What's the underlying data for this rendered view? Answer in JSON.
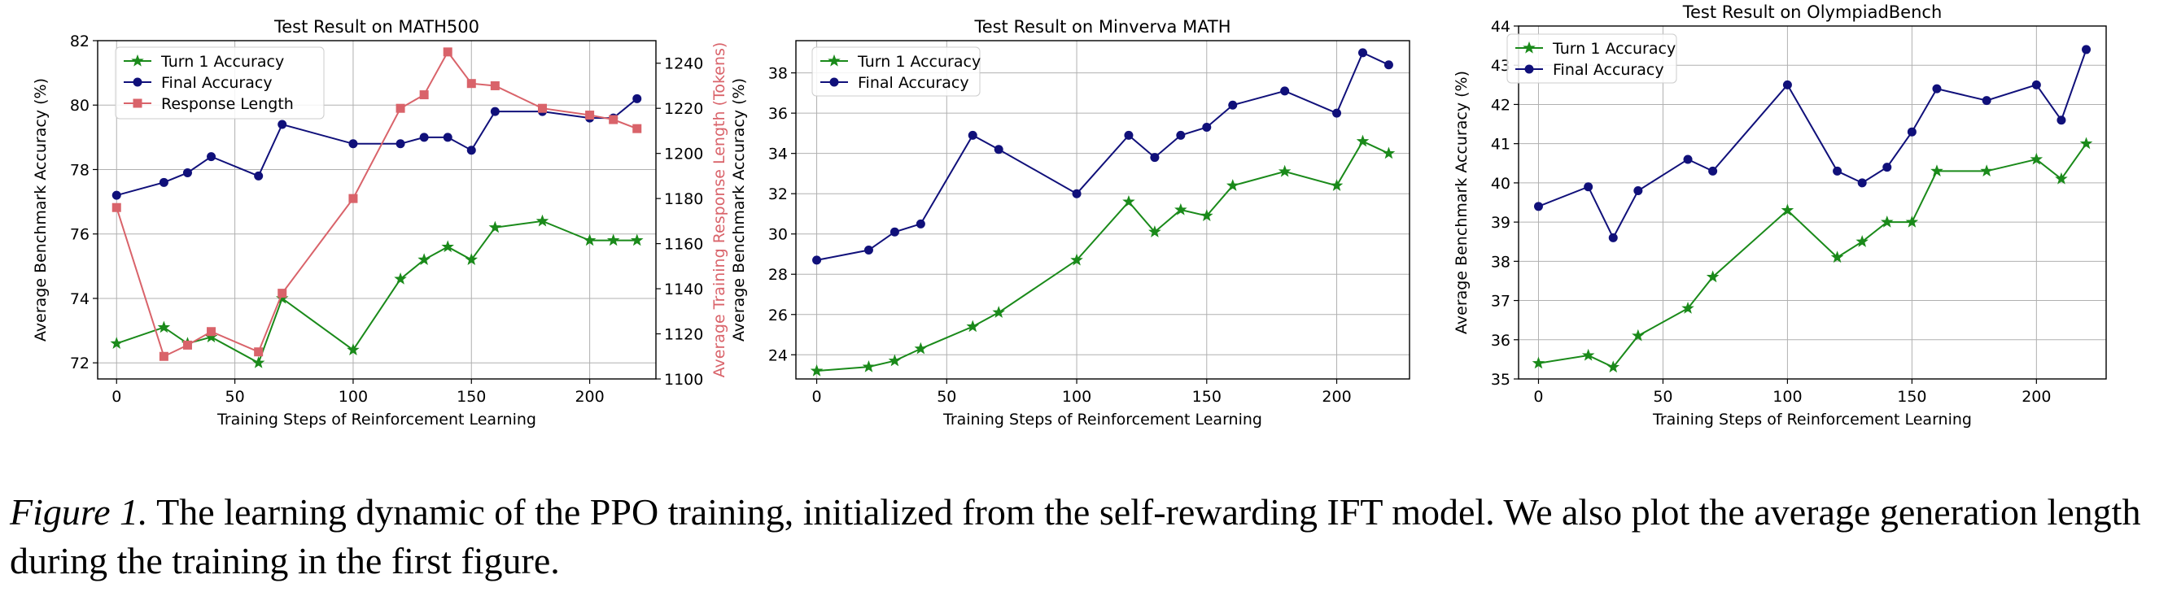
{
  "chart_data": [
    {
      "type": "line",
      "title": "Test Result on MATH500",
      "xlabel": "Training Steps of Reinforcement Learning",
      "ylabel": "Average Benchmark Accuracy (%)",
      "y2label": "Average Training Response Length (Tokens)",
      "xlim": [
        -8,
        228
      ],
      "ylim": [
        71.5,
        82
      ],
      "y2lim": [
        1100,
        1250
      ],
      "xticks": [
        0,
        50,
        100,
        150,
        200
      ],
      "yticks": [
        72,
        74,
        76,
        78,
        80,
        82
      ],
      "y2ticks": [
        1100,
        1120,
        1140,
        1160,
        1180,
        1200,
        1220,
        1240
      ],
      "grid": true,
      "legend": "top-left",
      "series": [
        {
          "name": "Turn 1 Accuracy",
          "color": "#1a8a1a",
          "marker": "star",
          "axis": "left",
          "x": [
            0,
            20,
            30,
            40,
            60,
            70,
            100,
            120,
            130,
            140,
            150,
            160,
            180,
            200,
            210,
            220
          ],
          "y": [
            72.6,
            73.1,
            72.6,
            72.8,
            72.0,
            74.0,
            72.4,
            74.6,
            75.2,
            75.6,
            75.2,
            76.2,
            76.4,
            75.8,
            75.8,
            75.8
          ]
        },
        {
          "name": "Final Accuracy",
          "color": "#10107a",
          "marker": "circle",
          "axis": "left",
          "x": [
            0,
            20,
            30,
            40,
            60,
            70,
            100,
            120,
            130,
            140,
            150,
            160,
            180,
            200,
            210,
            220
          ],
          "y": [
            77.2,
            77.6,
            77.9,
            78.4,
            77.8,
            79.4,
            78.8,
            78.8,
            79.0,
            79.0,
            78.6,
            79.8,
            79.8,
            79.6,
            79.6,
            80.2
          ]
        },
        {
          "name": "Response Length",
          "color": "#d9636a",
          "marker": "square",
          "axis": "right",
          "x": [
            0,
            20,
            30,
            40,
            60,
            70,
            100,
            120,
            130,
            140,
            150,
            160,
            180,
            200,
            210,
            220
          ],
          "y": [
            1176,
            1110,
            1115,
            1121,
            1112,
            1138,
            1180,
            1220,
            1226,
            1245,
            1231,
            1230,
            1220,
            1217,
            1215,
            1211
          ]
        }
      ]
    },
    {
      "type": "line",
      "title": "Test Result on Minverva MATH",
      "xlabel": "Training Steps of Reinforcement Learning",
      "ylabel": "Average Benchmark Accuracy (%)",
      "xlim": [
        -8,
        228
      ],
      "ylim": [
        22.8,
        39.6
      ],
      "xticks": [
        0,
        50,
        100,
        150,
        200
      ],
      "yticks": [
        24,
        26,
        28,
        30,
        32,
        34,
        36,
        38
      ],
      "grid": true,
      "legend": "top-left",
      "series": [
        {
          "name": "Turn 1 Accuracy",
          "color": "#1a8a1a",
          "marker": "star",
          "x": [
            0,
            20,
            30,
            40,
            60,
            70,
            100,
            120,
            130,
            140,
            150,
            160,
            180,
            200,
            210,
            220
          ],
          "y": [
            23.2,
            23.4,
            23.7,
            24.3,
            25.4,
            26.1,
            28.7,
            31.6,
            30.1,
            31.2,
            30.9,
            32.4,
            33.1,
            32.4,
            34.6,
            34.0
          ]
        },
        {
          "name": "Final Accuracy",
          "color": "#10107a",
          "marker": "circle",
          "x": [
            0,
            20,
            30,
            40,
            60,
            70,
            100,
            120,
            130,
            140,
            150,
            160,
            180,
            200,
            210,
            220
          ],
          "y": [
            28.7,
            29.2,
            30.1,
            30.5,
            34.9,
            34.2,
            32.0,
            34.9,
            33.8,
            34.9,
            35.3,
            36.4,
            37.1,
            36.0,
            39.0,
            38.4
          ]
        }
      ]
    },
    {
      "type": "line",
      "title": "Test Result on OlympiadBench",
      "xlabel": "Training Steps of Reinforcement Learning",
      "ylabel": "Average Benchmark Accuracy (%)",
      "xlim": [
        -8,
        228
      ],
      "ylim": [
        35,
        44
      ],
      "xticks": [
        0,
        50,
        100,
        150,
        200
      ],
      "yticks": [
        35,
        36,
        37,
        38,
        39,
        40,
        41,
        42,
        43,
        44
      ],
      "grid": true,
      "legend": "top-left",
      "series": [
        {
          "name": "Turn 1 Accuracy",
          "color": "#1a8a1a",
          "marker": "star",
          "x": [
            0,
            20,
            30,
            40,
            60,
            70,
            100,
            120,
            130,
            140,
            150,
            160,
            180,
            200,
            210,
            220
          ],
          "y": [
            35.4,
            35.6,
            35.3,
            36.1,
            36.8,
            37.6,
            39.3,
            38.1,
            38.5,
            39.0,
            39.0,
            40.3,
            40.3,
            40.6,
            40.1,
            41.0
          ]
        },
        {
          "name": "Final Accuracy",
          "color": "#10107a",
          "marker": "circle",
          "x": [
            0,
            20,
            30,
            40,
            60,
            70,
            100,
            120,
            130,
            140,
            150,
            160,
            180,
            200,
            210,
            220
          ],
          "y": [
            39.4,
            39.9,
            38.6,
            39.8,
            40.6,
            40.3,
            42.5,
            40.3,
            40.0,
            40.4,
            41.3,
            42.4,
            42.1,
            42.5,
            41.6,
            43.4
          ]
        }
      ]
    }
  ],
  "caption": {
    "label": "Figure 1.",
    "text": " The learning dynamic of the PPO training, initialized from the self-rewarding IFT model. We also plot the average generation length during the training in the first figure."
  }
}
